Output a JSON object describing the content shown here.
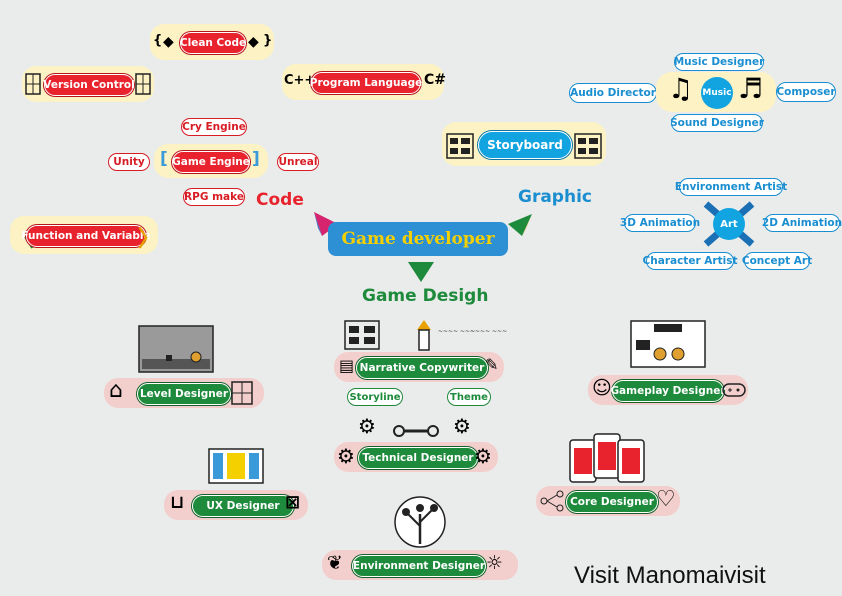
{
  "center": {
    "title": "Game developer"
  },
  "branches": {
    "code": "Code",
    "graphic": "Graphic",
    "design": "Game Desigh"
  },
  "code_nodes": {
    "clean_code": "Clean Code",
    "version_control": "Version Control",
    "program_language": "Program Language",
    "cry_engine": "Cry Engine",
    "unity": "Unity",
    "game_engine": "Game Engine",
    "unreal": "Unreal",
    "rpg_make": "RPG make",
    "function_variable": "Function and Variable"
  },
  "graphic_nodes": {
    "storyboard": "Storyboard",
    "music_designer": "Music Designer",
    "audio_director": "Audio Director",
    "music": "Music",
    "composer": "Composer",
    "sound_designer": "Sound Designer",
    "environment_artist": "Environment Artist",
    "animation_3d": "3D Animation",
    "art": "Art",
    "animation_2d": "2D Animation",
    "character_artist": "Character Artist",
    "concept_art": "Concept Art"
  },
  "design_nodes": {
    "level_designer": "Level Designer",
    "narrative_copywriter": "Narrative Copywriter",
    "storyline": "Storyline",
    "theme": "Theme",
    "gameplay_designer": "Gameplay Designer",
    "technical_designer": "Technical Designer",
    "ux_designer": "UX Designer",
    "core_designer": "Core Designer",
    "environment_designer": "Environment Designer"
  },
  "footer": {
    "credit": "Visit Manomaivisit"
  },
  "colors": {
    "code": "#e8232d",
    "graphic": "#1a8ed0",
    "design": "#1e8a3c",
    "center": "#2d8fd4",
    "center_text": "#f5d000"
  }
}
